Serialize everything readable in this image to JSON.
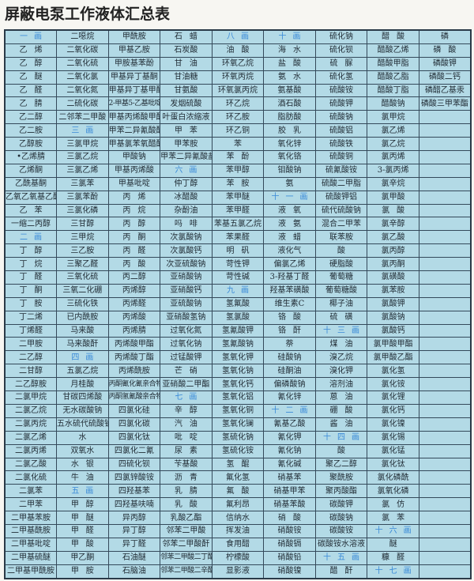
{
  "title": "屏蔽电泵工作液体汇总表",
  "heading_color": "#3a8ad8",
  "background_color": "#b3dae6",
  "rows": [
    [
      "一画",
      "二噁烷",
      "甲酰胺",
      "石蜡",
      "八画",
      "十画",
      "硫化钠",
      "醋酸",
      "磷"
    ],
    [
      "乙烯",
      "二氧化碳",
      "甲基乙胺",
      "石炭酸",
      "油酸",
      "海水",
      "硫化钡",
      "醋酸乙烯",
      "磷酸"
    ],
    [
      "乙醇",
      "二氧化硫",
      "甲胺基苯酚",
      "甘油",
      "环氧乙烷",
      "盐酸",
      "硫脲",
      "醋酸甲脂",
      "磷酸钾"
    ],
    [
      "乙醚",
      "二氧化氯",
      "甲基异丁基酮",
      "甘油糖",
      "环氧丙烷",
      "氨水",
      "硫化氢",
      "醋酸乙脂",
      "磷酸二钙"
    ],
    [
      "乙醛",
      "二氧化氮",
      "甲基异丁基甲酮",
      "甘氨酸",
      "环氧氯丙烷",
      "氨基酸",
      "硫酸铵",
      "醋酸丁脂",
      "磷醋乙基汞"
    ],
    [
      "乙腈",
      "二硫化碳",
      "2-甲基5-乙基吡啶",
      "发烟硫酸",
      "环乙烷",
      "酒石酸",
      "硫酸钾",
      "醋酸钠",
      "磷酸三甲苯酯"
    ],
    [
      "乙二醇",
      "二邻苯二甲酸",
      "甲基丙烯酸甲酯",
      "叶蛋白浓缩液",
      "环乙胺",
      "脂肪酸",
      "硫酸钠",
      "氯甲烷",
      ""
    ],
    [
      "乙二胺",
      "三画",
      "甲苯二异氰酸酯",
      "甲苯",
      "环乙铜",
      "胶乳",
      "硫酸铝",
      "氯乙烯",
      ""
    ],
    [
      "乙醇胺",
      "三氯甲烷",
      "甲基氯苯氧醋酸",
      "甲苯胺",
      "苯",
      "氧化锌",
      "硫酸铁",
      "氯乙烷",
      ""
    ],
    [
      "•乙烯腈",
      "三氯乙烷",
      "甲酸钠",
      "甲苯二异氰酸盐",
      "苯酚",
      "氧化铬",
      "硫酸铜",
      "氯丙烯",
      ""
    ],
    [
      "乙烯酮",
      "三氯乙烯",
      "甲基丙烯酸",
      "六画",
      "苯甲醇",
      "钼酸钠",
      "硫氰酸铵",
      "3-氯丙烯",
      ""
    ],
    [
      "乙酰基酮",
      "三氯苯",
      "甲基吡啶",
      "仲丁醇",
      "苯胺",
      "氨",
      "硫酸二甲脂",
      "氯辛烷",
      ""
    ],
    [
      "乙氧乙氧基乙醇",
      "三氯苯酚",
      "丙烯",
      "冰醋酸",
      "苯甲醚",
      "十一画",
      "硫酸钾铝",
      "氯甲酸",
      ""
    ],
    [
      "乙苯",
      "三氯化磷",
      "丙烷",
      "杂酚油",
      "苯甲醛",
      "液氧",
      "硫代硫酸钠",
      "氯酸",
      ""
    ],
    [
      "一缩二丙醇",
      "三甘醇",
      "丙醇",
      "吗啡",
      "苯基五氯乙烷",
      "液氨",
      "混合二甲苯",
      "氯辛醇",
      ""
    ],
    [
      "二画",
      "三甲烷",
      "丙酮",
      "次氯酸钠",
      "苯果醛",
      "液蜡",
      "联苯胺",
      "氯乙酸",
      ""
    ],
    [
      "丁醇",
      "三乙胺",
      "丙醛",
      "次氯酸钙",
      "明矾",
      "液化气",
      "酸",
      "氯丙醇",
      ""
    ],
    [
      "丁烷",
      "三聚乙醛",
      "丙酸",
      "次亚硫酸钠",
      "苛性钾",
      "偏氯乙烯",
      "硬脂酸",
      "氯丙酮",
      ""
    ],
    [
      "丁醛",
      "三氧化硫",
      "丙二醇",
      "亚硝酸钠",
      "苛性碱",
      "3-羟基丁醛",
      "葡萄糖",
      "氯磺酸",
      ""
    ],
    [
      "丁酮",
      "三氧二化硼",
      "丙烯醇",
      "亚硝酸钙",
      "九画",
      "羟基苯磺酸",
      "葡萄糖酸",
      "氯苯胺",
      ""
    ],
    [
      "丁胺",
      "三硫化铁",
      "丙烯醛",
      "亚硫酸钠",
      "氢氟酸",
      "维生素C",
      "椰子油",
      "氯酸钾",
      ""
    ],
    [
      "丁二烯",
      "已内酰胺",
      "丙烯酸",
      "亚硝酸氢钠",
      "氢氯酸",
      "铬酸",
      "硫磺",
      "氯酸钠",
      ""
    ],
    [
      "丁烯醛",
      "马来酸",
      "丙烯腈",
      "过氧化氮",
      "氢氰酸钾",
      "铬酐",
      "十三画",
      "氯酸钙",
      ""
    ],
    [
      "二甲胺",
      "马来酸酐",
      "丙烯酸甲酯",
      "过氧化钠",
      "氢氰酸钠",
      "萘",
      "煤油",
      "氯甲酸甲酯",
      ""
    ],
    [
      "二乙醇",
      "四画",
      "丙烯酸丁酯",
      "过锰酸钾",
      "氢氧化钾",
      "硅酸钠",
      "溴乙烷",
      "氯甲酸乙酯",
      ""
    ],
    [
      "二甘醇",
      "五氯乙烷",
      "丙烯酰胺",
      "芒硝",
      "氢氧化钠",
      "硅酮油",
      "溴化钾",
      "氯化氢",
      ""
    ],
    [
      "二乙醇胺",
      "月桂酸",
      "丙酮氰化氰亲合物",
      "亚硝酸二甲酯",
      "氢氧化钙",
      "偏磷酸钠",
      "溶剂油",
      "氯化铵",
      ""
    ],
    [
      "二氯甲烷",
      "甘碳四烯酸",
      "丙酮氢氰酸亲合物",
      "七画",
      "氢氧化铝",
      "氰化锌",
      "蒽油",
      "氯化锂",
      ""
    ],
    [
      "二氯乙烷",
      "无水碳酸钠",
      "四氯化硅",
      "辛醇",
      "氢氧化铜",
      "十二画",
      "硼酸",
      "氯化钙",
      ""
    ],
    [
      "二氯丙烷",
      "五水硫代硫酸钠",
      "四氯化碳",
      "汽油",
      "氢氧化镧",
      "氰基乙酸",
      "酱油",
      "氯化镍",
      ""
    ],
    [
      "二氯乙烯",
      "水",
      "四氯化钛",
      "吡啶",
      "氢硫化钠",
      "氰化钾",
      "十四画",
      "氯化锡",
      ""
    ],
    [
      "二氯丙烯",
      "双氧水",
      "四氯化二氰",
      "尿素",
      "氢硫化铵",
      "氰化钠",
      "酸",
      "氯化锰",
      ""
    ],
    [
      "二氯乙酸",
      "水银",
      "四硫化钡",
      "苄基酸",
      "氢醌",
      "氰化碱",
      "聚乙二醇",
      "氯化钛",
      ""
    ],
    [
      "二氯化硫",
      "牛油",
      "四氯锌酸铵",
      "沥青",
      "氟化氢",
      "硝基苯",
      "聚酰胺",
      "氯化磷酰",
      ""
    ],
    [
      "二氯苯",
      "五画",
      "四羟基苯",
      "乳腈",
      "氟酸",
      "硝基甲苯",
      "聚丙酸酯",
      "氯氧化磷",
      ""
    ],
    [
      "二甲苯",
      "甲醇",
      "四羟基呋喃",
      "乳酸",
      "氟利昂",
      "硝基苯酸",
      "碳酸钾",
      "氯仿",
      ""
    ],
    [
      "二甲基苯胺",
      "甲醚",
      "异丙醇",
      "乳酸乙酯",
      "信纳水",
      "硝酸",
      "碳酸钠",
      "氯苯",
      ""
    ],
    [
      "二甲基酰胺",
      "甲醛",
      "异丁醇",
      "邻苯二甲酸",
      "挥发油",
      "硝酸铵",
      "碳酸铵",
      "十六画",
      ""
    ],
    [
      "二甲基吡啶",
      "甲酸",
      "异丁醛",
      "邻苯二甲酸酐",
      "食用醋",
      "硝酸镉",
      "碳酸铵水溶液",
      "醚",
      ""
    ],
    [
      "二甲基硫醚",
      "甲乙酮",
      "石油醚",
      "邻苯二甲酸二丁酯",
      "柠檬酸",
      "硝酸铅",
      "十五画",
      "糠醛",
      ""
    ],
    [
      "二甲基甲酰胺",
      "甲胺",
      "石脑油",
      "邻苯二甲酸二辛酯",
      "显影液",
      "硝酸镍",
      "醋酐",
      "十七画",
      ""
    ]
  ]
}
